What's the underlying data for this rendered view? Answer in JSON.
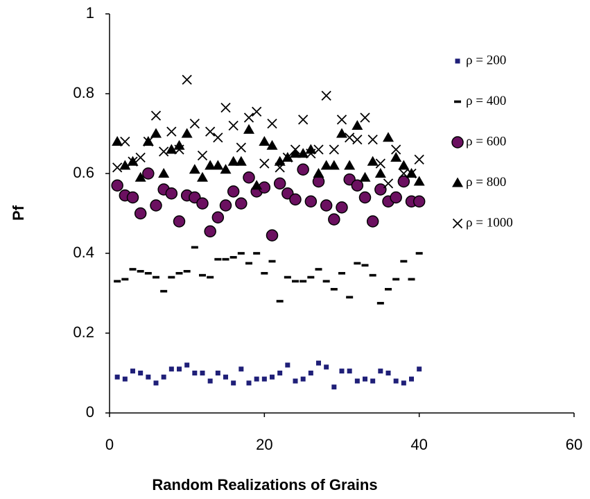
{
  "chart_data": {
    "type": "scatter",
    "xlabel": "Random Realizations of Grains",
    "ylabel": "Pf",
    "xlim": [
      0,
      60
    ],
    "xticks": [
      0,
      20,
      40,
      60
    ],
    "ylim": [
      0,
      1
    ],
    "yticks": [
      0,
      0.2,
      0.4,
      0.6,
      0.8,
      1
    ],
    "grid": false,
    "legend": "right",
    "x": [
      1,
      2,
      3,
      4,
      5,
      6,
      7,
      8,
      9,
      10,
      11,
      12,
      13,
      14,
      15,
      16,
      17,
      18,
      19,
      20,
      21,
      22,
      23,
      24,
      25,
      26,
      27,
      28,
      29,
      30,
      31,
      32,
      33,
      34,
      35,
      36,
      37,
      38,
      39,
      40
    ],
    "series": [
      {
        "name": "ρ = 200",
        "color": "#1f1f78",
        "marker": "square",
        "values": [
          0.09,
          0.085,
          0.105,
          0.1,
          0.09,
          0.075,
          0.09,
          0.11,
          0.11,
          0.12,
          0.1,
          0.1,
          0.08,
          0.1,
          0.09,
          0.075,
          0.11,
          0.075,
          0.085,
          0.085,
          0.09,
          0.1,
          0.12,
          0.08,
          0.085,
          0.1,
          0.125,
          0.115,
          0.065,
          0.105,
          0.105,
          0.08,
          0.085,
          0.08,
          0.105,
          0.1,
          0.08,
          0.075,
          0.085,
          0.11
        ]
      },
      {
        "name": "ρ = 400",
        "color": "#000000",
        "marker": "dash",
        "values": [
          0.33,
          0.335,
          0.36,
          0.355,
          0.35,
          0.34,
          0.305,
          0.34,
          0.35,
          0.355,
          0.415,
          0.345,
          0.34,
          0.385,
          0.385,
          0.39,
          0.4,
          0.375,
          0.4,
          0.35,
          0.38,
          0.28,
          0.34,
          0.33,
          0.33,
          0.34,
          0.36,
          0.33,
          0.31,
          0.35,
          0.29,
          0.375,
          0.37,
          0.345,
          0.275,
          0.31,
          0.335,
          0.38,
          0.335,
          0.4
        ]
      },
      {
        "name": "ρ = 600",
        "color": "#6b1060",
        "marker": "circle",
        "values": [
          0.57,
          0.545,
          0.54,
          0.5,
          0.6,
          0.52,
          0.56,
          0.55,
          0.48,
          0.545,
          0.54,
          0.525,
          0.455,
          0.49,
          0.52,
          0.555,
          0.525,
          0.59,
          0.555,
          0.565,
          0.445,
          0.575,
          0.55,
          0.535,
          0.61,
          0.53,
          0.58,
          0.52,
          0.485,
          0.515,
          0.585,
          0.57,
          0.54,
          0.48,
          0.56,
          0.53,
          0.54,
          0.58,
          0.53,
          0.53
        ]
      },
      {
        "name": "ρ = 800",
        "color": "#000000",
        "marker": "triangle",
        "values": [
          0.68,
          0.62,
          0.63,
          0.59,
          0.68,
          0.7,
          0.6,
          0.66,
          0.67,
          0.7,
          0.61,
          0.59,
          0.62,
          0.62,
          0.61,
          0.63,
          0.63,
          0.71,
          0.57,
          0.68,
          0.67,
          0.63,
          0.64,
          0.65,
          0.65,
          0.66,
          0.6,
          0.62,
          0.62,
          0.7,
          0.62,
          0.72,
          0.59,
          0.63,
          0.6,
          0.69,
          0.64,
          0.62,
          0.6,
          0.58
        ]
      },
      {
        "name": "ρ = 1000",
        "color": "#000000",
        "marker": "x",
        "values": [
          0.615,
          0.68,
          0.63,
          0.64,
          0.68,
          0.745,
          0.655,
          0.705,
          0.66,
          0.835,
          0.725,
          0.645,
          0.705,
          0.69,
          0.765,
          0.72,
          0.665,
          0.74,
          0.755,
          0.625,
          0.725,
          0.615,
          0.64,
          0.66,
          0.735,
          0.65,
          0.66,
          0.795,
          0.66,
          0.735,
          0.69,
          0.685,
          0.74,
          0.685,
          0.625,
          0.575,
          0.66,
          0.6,
          0.6,
          0.635
        ]
      }
    ]
  }
}
